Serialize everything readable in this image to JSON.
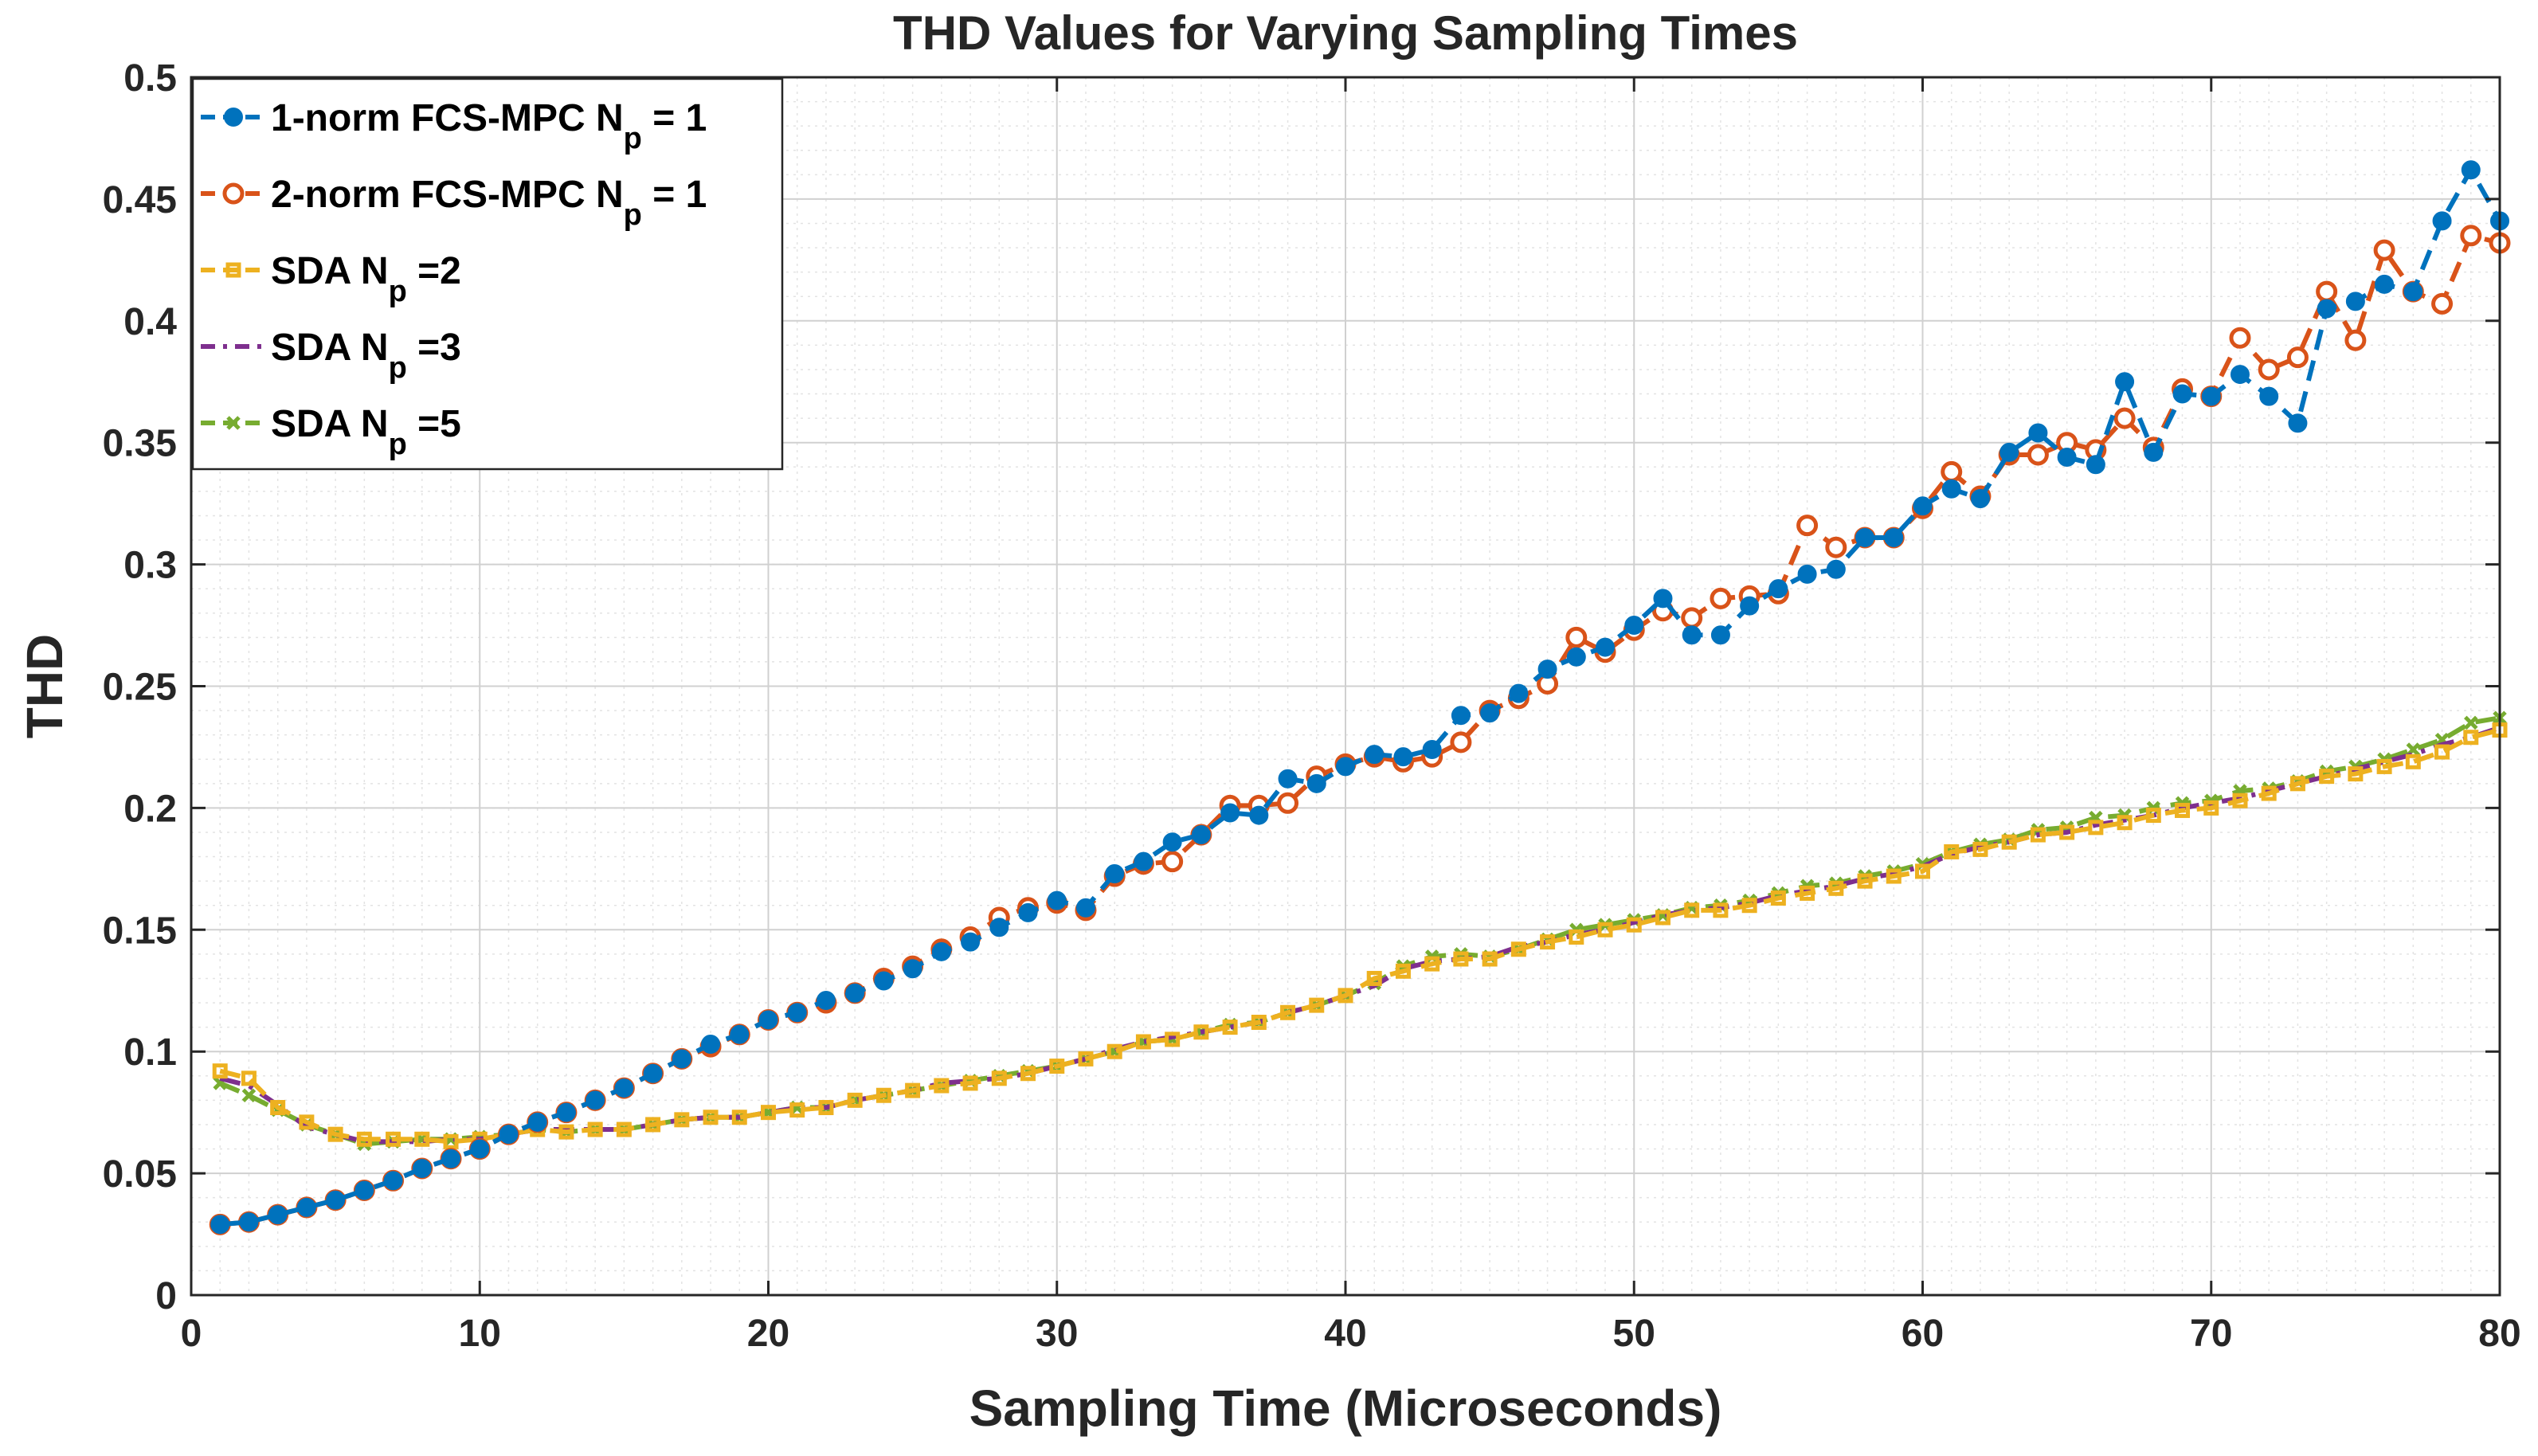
{
  "chart_data": {
    "type": "line",
    "title": "THD Values for Varying Sampling Times",
    "xlabel": "Sampling Time (Microseconds)",
    "ylabel": "THD",
    "xlim": [
      0,
      80
    ],
    "ylim": [
      0,
      0.5
    ],
    "xticks": [
      0,
      10,
      20,
      30,
      40,
      50,
      60,
      70,
      80
    ],
    "xtick_labels": [
      "0",
      "10",
      "20",
      "30",
      "40",
      "50",
      "60",
      "70",
      "80"
    ],
    "yticks": [
      0,
      0.05,
      0.1,
      0.15,
      0.2,
      0.25,
      0.3,
      0.35,
      0.4,
      0.45,
      0.5
    ],
    "ytick_labels": [
      "0",
      "0.05",
      "0.1",
      "0.15",
      "0.2",
      "0.25",
      "0.3",
      "0.35",
      "0.4",
      "0.45",
      "0.5"
    ],
    "grid": true,
    "minor_grid": true,
    "legend_position": "top-left",
    "x": [
      1,
      2,
      3,
      4,
      5,
      6,
      7,
      8,
      9,
      10,
      11,
      12,
      13,
      14,
      15,
      16,
      17,
      18,
      19,
      20,
      21,
      22,
      23,
      24,
      25,
      26,
      27,
      28,
      29,
      30,
      31,
      32,
      33,
      34,
      35,
      36,
      37,
      38,
      39,
      40,
      41,
      42,
      43,
      44,
      45,
      46,
      47,
      48,
      49,
      50,
      51,
      52,
      53,
      54,
      55,
      56,
      57,
      58,
      59,
      60,
      61,
      62,
      63,
      64,
      65,
      66,
      67,
      68,
      69,
      70,
      71,
      72,
      73,
      74,
      75,
      76,
      77,
      78,
      79,
      80
    ],
    "series": [
      {
        "name": "1-norm FCS-MPC N",
        "name_sub": "p",
        "name_suffix": " = 1",
        "color": "#0072BD",
        "marker": "filled-circle",
        "dash": "dashed",
        "values": [
          0.029,
          0.03,
          0.033,
          0.036,
          0.039,
          0.043,
          0.047,
          0.052,
          0.056,
          0.06,
          0.066,
          0.071,
          0.075,
          0.08,
          0.085,
          0.091,
          0.097,
          0.103,
          0.107,
          0.113,
          0.116,
          0.121,
          0.124,
          0.129,
          0.134,
          0.141,
          0.145,
          0.151,
          0.157,
          0.162,
          0.159,
          0.173,
          0.178,
          0.186,
          0.189,
          0.198,
          0.197,
          0.212,
          0.21,
          0.217,
          0.222,
          0.221,
          0.224,
          0.238,
          0.239,
          0.247,
          0.257,
          0.262,
          0.266,
          0.275,
          0.286,
          0.271,
          0.271,
          0.283,
          0.29,
          0.296,
          0.298,
          0.311,
          0.311,
          0.324,
          0.331,
          0.327,
          0.346,
          0.354,
          0.344,
          0.341,
          0.375,
          0.346,
          0.37,
          0.369,
          0.378,
          0.369,
          0.358,
          0.405,
          0.408,
          0.415,
          0.412,
          0.441,
          0.462,
          0.441
        ]
      },
      {
        "name": "2-norm FCS-MPC N",
        "name_sub": "p",
        "name_suffix": " = 1",
        "color": "#D95319",
        "marker": "open-circle",
        "dash": "dashed",
        "values": [
          0.029,
          0.03,
          0.033,
          0.036,
          0.039,
          0.043,
          0.047,
          0.052,
          0.056,
          0.06,
          0.066,
          0.071,
          0.075,
          0.08,
          0.085,
          0.091,
          0.097,
          0.102,
          0.107,
          0.113,
          0.116,
          0.12,
          0.124,
          0.13,
          0.135,
          0.142,
          0.147,
          0.155,
          0.159,
          0.161,
          0.158,
          0.172,
          0.177,
          0.178,
          0.189,
          0.201,
          0.201,
          0.202,
          0.213,
          0.218,
          0.221,
          0.219,
          0.221,
          0.227,
          0.24,
          0.245,
          0.251,
          0.27,
          0.264,
          0.273,
          0.281,
          0.278,
          0.286,
          0.287,
          0.288,
          0.316,
          0.307,
          0.311,
          0.311,
          0.323,
          0.338,
          0.328,
          0.345,
          0.345,
          0.35,
          0.347,
          0.36,
          0.348,
          0.372,
          0.369,
          0.393,
          0.38,
          0.385,
          0.412,
          0.392,
          0.429,
          0.412,
          0.407,
          0.435,
          0.432
        ]
      },
      {
        "name": "SDA N",
        "name_sub": "p",
        "name_suffix": " =2",
        "color": "#EDB120",
        "marker": "square",
        "dash": "dashed",
        "values": [
          0.092,
          0.089,
          0.077,
          0.071,
          0.066,
          0.064,
          0.064,
          0.064,
          0.063,
          0.064,
          0.066,
          0.068,
          0.067,
          0.068,
          0.068,
          0.07,
          0.072,
          0.073,
          0.073,
          0.075,
          0.076,
          0.077,
          0.08,
          0.082,
          0.084,
          0.086,
          0.087,
          0.089,
          0.091,
          0.094,
          0.097,
          0.1,
          0.104,
          0.105,
          0.108,
          0.11,
          0.112,
          0.116,
          0.119,
          0.123,
          0.13,
          0.133,
          0.136,
          0.138,
          0.138,
          0.142,
          0.145,
          0.147,
          0.15,
          0.152,
          0.155,
          0.158,
          0.158,
          0.16,
          0.163,
          0.165,
          0.167,
          0.17,
          0.172,
          0.174,
          0.182,
          0.183,
          0.186,
          0.189,
          0.19,
          0.192,
          0.194,
          0.197,
          0.199,
          0.2,
          0.203,
          0.206,
          0.21,
          0.213,
          0.214,
          0.217,
          0.219,
          0.223,
          0.229,
          0.232
        ]
      },
      {
        "name": "SDA N",
        "name_sub": "p",
        "name_suffix": " =3",
        "color": "#7E2F8E",
        "marker": "none",
        "dash": "dash-dot",
        "values": [
          0.089,
          0.086,
          0.078,
          0.069,
          0.066,
          0.063,
          0.063,
          0.063,
          0.064,
          0.064,
          0.066,
          0.068,
          0.068,
          0.068,
          0.068,
          0.07,
          0.072,
          0.073,
          0.073,
          0.075,
          0.077,
          0.077,
          0.08,
          0.082,
          0.084,
          0.087,
          0.088,
          0.089,
          0.091,
          0.094,
          0.097,
          0.101,
          0.104,
          0.106,
          0.108,
          0.11,
          0.112,
          0.116,
          0.119,
          0.123,
          0.127,
          0.134,
          0.137,
          0.138,
          0.139,
          0.143,
          0.145,
          0.148,
          0.15,
          0.153,
          0.156,
          0.158,
          0.159,
          0.161,
          0.164,
          0.166,
          0.168,
          0.171,
          0.173,
          0.176,
          0.181,
          0.184,
          0.186,
          0.189,
          0.19,
          0.193,
          0.195,
          0.197,
          0.2,
          0.202,
          0.204,
          0.207,
          0.21,
          0.213,
          0.216,
          0.219,
          0.222,
          0.226,
          0.229,
          0.233
        ]
      },
      {
        "name": "SDA N",
        "name_sub": "p",
        "name_suffix": " =5",
        "color": "#77AC30",
        "marker": "x",
        "dash": "dashed",
        "values": [
          0.087,
          0.082,
          0.076,
          0.07,
          0.066,
          0.062,
          0.063,
          0.064,
          0.064,
          0.065,
          0.066,
          0.068,
          0.067,
          0.068,
          0.068,
          0.07,
          0.072,
          0.073,
          0.073,
          0.075,
          0.077,
          0.077,
          0.08,
          0.082,
          0.084,
          0.086,
          0.088,
          0.09,
          0.092,
          0.094,
          0.097,
          0.1,
          0.104,
          0.105,
          0.108,
          0.111,
          0.112,
          0.116,
          0.119,
          0.123,
          0.128,
          0.135,
          0.139,
          0.14,
          0.139,
          0.142,
          0.146,
          0.15,
          0.152,
          0.154,
          0.156,
          0.159,
          0.16,
          0.162,
          0.165,
          0.168,
          0.169,
          0.172,
          0.174,
          0.177,
          0.182,
          0.185,
          0.187,
          0.191,
          0.192,
          0.196,
          0.197,
          0.2,
          0.202,
          0.203,
          0.207,
          0.208,
          0.211,
          0.215,
          0.217,
          0.22,
          0.224,
          0.228,
          0.235,
          0.237
        ]
      }
    ]
  }
}
